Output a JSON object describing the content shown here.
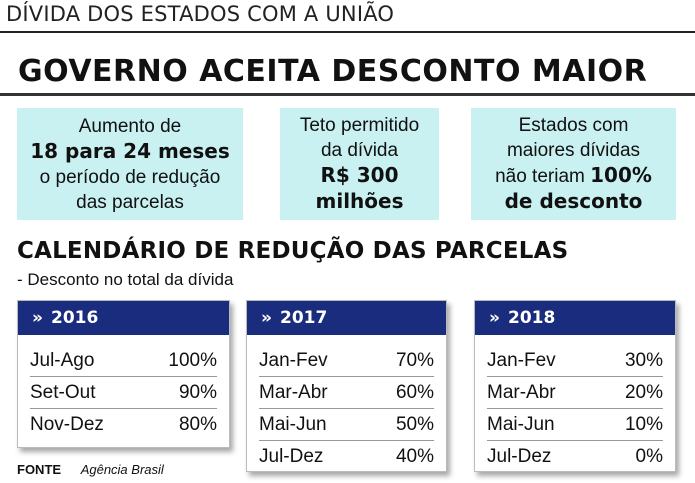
{
  "kicker": "DÍVIDA DOS ESTADOS COM A UNIÃO",
  "headline": "GOVERNO ACEITA DESCONTO MAIOR",
  "facts": [
    {
      "line1": "Aumento de",
      "bold": "18 para 24 meses",
      "line3": "o período de redução",
      "line4": "das parcelas"
    },
    {
      "line1": "Teto permitido",
      "line2": "da dívida",
      "bold1": "R$ 300",
      "bold2": "milhões"
    },
    {
      "line1": "Estados com",
      "line2": "maiores dívidas",
      "line3_pre": "não teriam ",
      "line3_bold": "100%",
      "bold": "de desconto"
    }
  ],
  "calendar": {
    "title": "CALENDÁRIO DE REDUÇÃO DAS PARCELAS",
    "subtitle": "- Desconto no total da dívida",
    "chevron": "»",
    "years": [
      {
        "year": "2016",
        "rows": [
          {
            "period": "Jul-Ago",
            "discount": "100%"
          },
          {
            "period": "Set-Out",
            "discount": "90%"
          },
          {
            "period": "Nov-Dez",
            "discount": "80%"
          }
        ]
      },
      {
        "year": "2017",
        "rows": [
          {
            "period": "Jan-Fev",
            "discount": "70%"
          },
          {
            "period": "Mar-Abr",
            "discount": "60%"
          },
          {
            "period": "Mai-Jun",
            "discount": "50%"
          },
          {
            "period": "Jul-Dez",
            "discount": "40%"
          }
        ]
      },
      {
        "year": "2018",
        "rows": [
          {
            "period": "Jan-Fev",
            "discount": "30%"
          },
          {
            "period": "Mar-Abr",
            "discount": "20%"
          },
          {
            "period": "Mai-Jun",
            "discount": "10%"
          },
          {
            "period": "Jul-Dez",
            "discount": "0%"
          }
        ]
      }
    ]
  },
  "source": {
    "label": "FONTE",
    "value": "Agência Brasil"
  },
  "colors": {
    "fact_bg": "#c9f1f2",
    "header_blue": "#1a2c7e"
  }
}
